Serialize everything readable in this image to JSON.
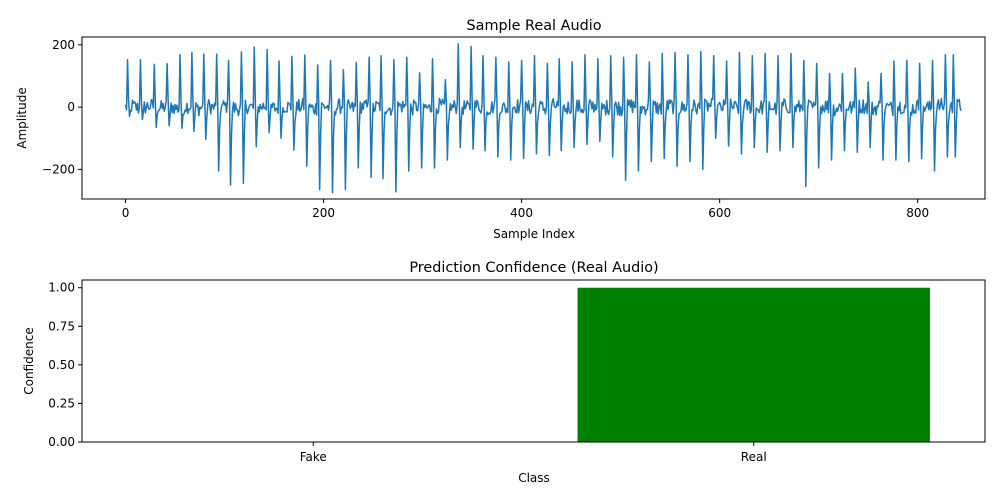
{
  "chart_data": [
    {
      "type": "line",
      "title": "Sample Real Audio",
      "xlabel": "Sample Index",
      "ylabel": "Amplitude",
      "xlim": [
        -44,
        868
      ],
      "ylim": [
        -295,
        225
      ],
      "xticks": [
        0,
        200,
        400,
        600,
        800
      ],
      "yticks": [
        -200,
        0,
        200
      ],
      "xtick_labels": [
        "0",
        "200",
        "400",
        "600",
        "800"
      ],
      "ytick_labels": [
        "−200",
        "0",
        "200"
      ],
      "grid": false,
      "color": "#1f77b4",
      "num_samples": 845,
      "series": [
        {
          "name": "",
          "spike_positions": [
            2,
            15,
            29,
            42,
            55,
            67,
            79,
            92,
            104,
            117,
            130,
            143,
            155,
            168,
            181,
            194,
            207,
            220,
            233,
            246,
            258,
            271,
            284,
            297,
            310,
            323,
            336,
            349,
            361,
            374,
            387,
            400,
            413,
            426,
            438,
            451,
            464,
            477,
            490,
            503,
            516,
            529,
            542,
            555,
            568,
            581,
            594,
            607,
            620,
            633,
            646,
            659,
            672,
            685,
            698,
            711,
            724,
            737,
            750,
            763,
            776,
            789,
            802,
            815,
            828,
            836
          ],
          "spike_peaks": [
            152,
            152,
            137,
            139,
            168,
            175,
            170,
            170,
            150,
            177,
            193,
            185,
            148,
            163,
            167,
            135,
            150,
            120,
            143,
            160,
            165,
            152,
            160,
            110,
            155,
            88,
            203,
            195,
            165,
            160,
            145,
            150,
            165,
            140,
            155,
            145,
            168,
            155,
            165,
            160,
            168,
            145,
            172,
            175,
            168,
            178,
            165,
            148,
            175,
            165,
            172,
            165,
            172,
            150,
            140,
            108,
            108,
            125,
            80,
            108,
            148,
            150,
            140,
            150,
            168,
            168
          ],
          "spike_troughs": [
            -30,
            -40,
            -65,
            -60,
            -68,
            -78,
            -103,
            -205,
            -250,
            -245,
            -127,
            -82,
            -100,
            -138,
            -190,
            -265,
            -275,
            -265,
            -195,
            -225,
            -230,
            -272,
            -205,
            -195,
            -195,
            -170,
            -130,
            -135,
            -140,
            -160,
            -170,
            -165,
            -150,
            -155,
            -140,
            -130,
            -120,
            -110,
            -160,
            -235,
            -205,
            -175,
            -165,
            -190,
            -175,
            -200,
            -100,
            -125,
            -150,
            -130,
            -145,
            -140,
            -130,
            -255,
            -195,
            -170,
            -140,
            -145,
            -130,
            -170,
            -170,
            -175,
            -165,
            -205,
            -160,
            -160
          ],
          "noise_range": [
            -45,
            45
          ]
        }
      ]
    },
    {
      "type": "bar",
      "title": "Prediction Confidence (Real Audio)",
      "xlabel": "Class",
      "ylabel": "Confidence",
      "categories": [
        "Fake",
        "Real"
      ],
      "values": [
        0.0,
        1.0
      ],
      "colors": [
        "#008000",
        "#008000"
      ],
      "ylim": [
        0,
        1.05
      ],
      "yticks": [
        0.0,
        0.25,
        0.5,
        0.75,
        1.0
      ],
      "ytick_labels": [
        "0.00",
        "0.25",
        "0.50",
        "0.75",
        "1.00"
      ],
      "grid": false
    }
  ]
}
